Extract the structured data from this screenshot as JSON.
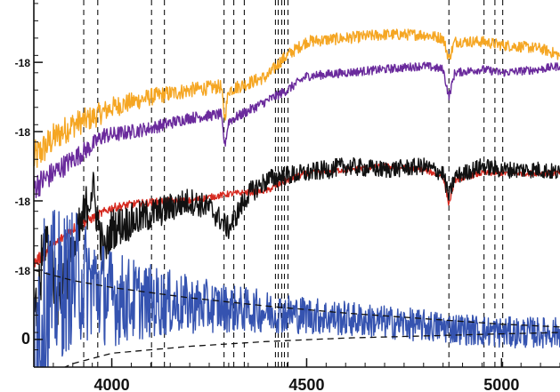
{
  "chart_data": {
    "type": "line",
    "title": "",
    "xlabel": "",
    "ylabel": "",
    "x_ticks": [
      {
        "value": 4000,
        "label": "4000"
      },
      {
        "value": 4500,
        "label": "4500"
      },
      {
        "value": 5000,
        "label": "5000"
      }
    ],
    "y_ticks": [
      {
        "value": 4,
        "label": "-18"
      },
      {
        "value": 3,
        "label": "-18"
      },
      {
        "value": 2,
        "label": "-18"
      },
      {
        "value": 1,
        "label": "-18"
      },
      {
        "value": 0,
        "label": "0"
      }
    ],
    "xlim": [
      3800,
      5150
    ],
    "ylim": [
      -0.4,
      4.9
    ],
    "grid": false,
    "legend": "none",
    "reference_lines_x": [
      3928,
      3964,
      4102,
      4135,
      4288,
      4313,
      4340,
      4420,
      4427,
      4436,
      4443,
      4452,
      4865,
      4955,
      4983,
      5003
    ],
    "series": [
      {
        "color": "#f5a623",
        "x_start": 3800,
        "x_end": 5150,
        "points": [
          [
            3800,
            2.6
          ],
          [
            3850,
            2.9
          ],
          [
            3900,
            3.1
          ],
          [
            3950,
            3.2
          ],
          [
            4000,
            3.35
          ],
          [
            4100,
            3.5
          ],
          [
            4200,
            3.6
          ],
          [
            4280,
            3.65
          ],
          [
            4290,
            3.2
          ],
          [
            4300,
            3.6
          ],
          [
            4350,
            3.7
          ],
          [
            4400,
            3.8
          ],
          [
            4430,
            4.0
          ],
          [
            4450,
            4.1
          ],
          [
            4500,
            4.3
          ],
          [
            4600,
            4.35
          ],
          [
            4700,
            4.4
          ],
          [
            4800,
            4.4
          ],
          [
            4850,
            4.35
          ],
          [
            4865,
            4.05
          ],
          [
            4880,
            4.3
          ],
          [
            4950,
            4.3
          ],
          [
            5000,
            4.25
          ],
          [
            5100,
            4.2
          ],
          [
            5150,
            4.1
          ]
        ],
        "noise": [
          0.18,
          0.08
        ]
      },
      {
        "color": "#6a2a9c",
        "x_start": 3800,
        "x_end": 5150,
        "points": [
          [
            3800,
            2.2
          ],
          [
            3850,
            2.4
          ],
          [
            3900,
            2.6
          ],
          [
            3950,
            2.8
          ],
          [
            3980,
            2.95
          ],
          [
            4000,
            2.95
          ],
          [
            4100,
            3.05
          ],
          [
            4200,
            3.2
          ],
          [
            4280,
            3.25
          ],
          [
            4290,
            2.8
          ],
          [
            4300,
            3.15
          ],
          [
            4350,
            3.3
          ],
          [
            4400,
            3.45
          ],
          [
            4450,
            3.6
          ],
          [
            4500,
            3.8
          ],
          [
            4600,
            3.85
          ],
          [
            4700,
            3.9
          ],
          [
            4800,
            3.95
          ],
          [
            4850,
            3.9
          ],
          [
            4865,
            3.5
          ],
          [
            4880,
            3.85
          ],
          [
            4950,
            3.9
          ],
          [
            5000,
            3.85
          ],
          [
            5100,
            3.9
          ],
          [
            5150,
            3.95
          ]
        ],
        "noise": [
          0.14,
          0.06
        ]
      },
      {
        "color": "#d62a20",
        "x_start": 3800,
        "x_end": 5150,
        "points": [
          [
            3800,
            1.1
          ],
          [
            3850,
            1.35
          ],
          [
            3900,
            1.6
          ],
          [
            3950,
            1.75
          ],
          [
            4000,
            1.9
          ],
          [
            4050,
            1.95
          ],
          [
            4100,
            1.98
          ],
          [
            4150,
            2.0
          ],
          [
            4200,
            2.0
          ],
          [
            4250,
            2.05
          ],
          [
            4300,
            2.1
          ],
          [
            4350,
            2.12
          ],
          [
            4400,
            2.15
          ],
          [
            4450,
            2.3
          ],
          [
            4500,
            2.4
          ],
          [
            4600,
            2.45
          ],
          [
            4700,
            2.5
          ],
          [
            4800,
            2.45
          ],
          [
            4850,
            2.35
          ],
          [
            4865,
            1.95
          ],
          [
            4880,
            2.3
          ],
          [
            4950,
            2.4
          ],
          [
            5000,
            2.4
          ],
          [
            5100,
            2.4
          ],
          [
            5150,
            2.4
          ]
        ],
        "noise": [
          0.05,
          0.04
        ]
      },
      {
        "color": "#111111",
        "x_start": 3800,
        "x_end": 5150,
        "points": [
          [
            3800,
            0.0
          ],
          [
            3830,
            1.5
          ],
          [
            3860,
            0.6
          ],
          [
            3900,
            1.2
          ],
          [
            3950,
            2.2
          ],
          [
            3980,
            1.2
          ],
          [
            4000,
            1.6
          ],
          [
            4050,
            1.7
          ],
          [
            4100,
            1.8
          ],
          [
            4150,
            1.9
          ],
          [
            4200,
            2.0
          ],
          [
            4250,
            1.9
          ],
          [
            4300,
            1.6
          ],
          [
            4350,
            2.1
          ],
          [
            4400,
            2.3
          ],
          [
            4430,
            2.35
          ],
          [
            4500,
            2.4
          ],
          [
            4600,
            2.5
          ],
          [
            4700,
            2.45
          ],
          [
            4800,
            2.5
          ],
          [
            4850,
            2.4
          ],
          [
            4865,
            2.05
          ],
          [
            4880,
            2.35
          ],
          [
            4950,
            2.5
          ],
          [
            5000,
            2.45
          ],
          [
            5100,
            2.45
          ],
          [
            5150,
            2.4
          ]
        ],
        "noise": [
          0.45,
          0.12
        ]
      },
      {
        "color": "#3553b0",
        "x_start": 3800,
        "x_end": 5150,
        "points": [
          [
            3800,
            0.2
          ],
          [
            3850,
            0.7
          ],
          [
            3900,
            0.9
          ],
          [
            3950,
            0.8
          ],
          [
            4000,
            0.6
          ],
          [
            4100,
            0.55
          ],
          [
            4200,
            0.5
          ],
          [
            4300,
            0.45
          ],
          [
            4400,
            0.4
          ],
          [
            4500,
            0.35
          ],
          [
            4600,
            0.3
          ],
          [
            4700,
            0.25
          ],
          [
            4800,
            0.2
          ],
          [
            4900,
            0.15
          ],
          [
            5000,
            0.1
          ],
          [
            5100,
            0.1
          ],
          [
            5150,
            0.1
          ]
        ],
        "noise": [
          1.2,
          0.22
        ]
      },
      {
        "color": "#111111",
        "dash": true,
        "x_start": 3800,
        "x_end": 5150,
        "points": [
          [
            3800,
            1.0
          ],
          [
            3900,
            0.85
          ],
          [
            4000,
            0.75
          ],
          [
            4200,
            0.6
          ],
          [
            4400,
            0.48
          ],
          [
            4600,
            0.38
          ],
          [
            4800,
            0.3
          ],
          [
            5000,
            0.22
          ],
          [
            5150,
            0.18
          ]
        ],
        "noise": [
          0,
          0
        ]
      },
      {
        "color": "#111111",
        "dash": true,
        "x_start": 3800,
        "x_end": 5150,
        "points": [
          [
            3800,
            -0.6
          ],
          [
            3900,
            -0.35
          ],
          [
            4000,
            -0.2
          ],
          [
            4200,
            -0.1
          ],
          [
            4400,
            -0.03
          ],
          [
            4600,
            0.02
          ],
          [
            4800,
            0.05
          ],
          [
            5000,
            0.08
          ],
          [
            5150,
            0.1
          ]
        ],
        "noise": [
          0,
          0
        ]
      }
    ]
  }
}
